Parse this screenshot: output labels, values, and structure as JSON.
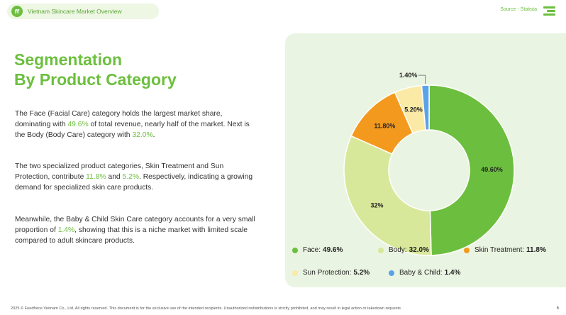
{
  "header": {
    "logo_text": "ff",
    "pill_title": "Vietnam Skincare Market Overview",
    "source": "Source - Statista"
  },
  "title": {
    "line1": "Segmentation",
    "line2": "By Product Category"
  },
  "paragraphs": {
    "p1": {
      "a": "The Face (Facial Care) category holds the largest market share, dominating with ",
      "h1": "49.6%",
      "b": " of total revenue, nearly half of the market. Next is the Body (Body Care) category with ",
      "h2": "32.0%",
      "c": "."
    },
    "p2": {
      "a": "The two specialized product categories, Skin Treatment and Sun Protection, contribute ",
      "h1": "11.8%",
      "b": " and ",
      "h2": "5.2%",
      "c": ". Respectively, indicating a growing demand for specialized skin care products."
    },
    "p3": {
      "a": "Meanwhile, the Baby & Child Skin Care category accounts for a very small proportion of ",
      "h1": "1.4%",
      "b": ", showing that this is a niche market with limited scale compared to adult skincare products."
    }
  },
  "chart_data": {
    "type": "pie",
    "subtype": "donut",
    "categories": [
      "Face",
      "Body",
      "Skin Treatment",
      "Sun Protection",
      "Baby & Child"
    ],
    "values": [
      49.6,
      32.0,
      11.8,
      5.2,
      1.4
    ],
    "slice_labels": [
      "49.60%",
      "32%",
      "11.80%",
      "5.20%",
      "1.40%"
    ],
    "legend_values": [
      "49.6%",
      "32.0%",
      "11.8%",
      "5.2%",
      "1.4%"
    ],
    "colors": [
      "#6cbf3e",
      "#d8e89a",
      "#f39a1e",
      "#faeaa6",
      "#5ba3e8"
    ],
    "legend_position": "bottom"
  },
  "footer": {
    "text": "2025 © Feedforce Vietnam Co., Ltd. All rights reserved. This document is for the exclusive use of the intended recipients. Unauthorized redistributions is strictly prohibited, and may result in legal action or takedown requests.",
    "page": "6"
  }
}
